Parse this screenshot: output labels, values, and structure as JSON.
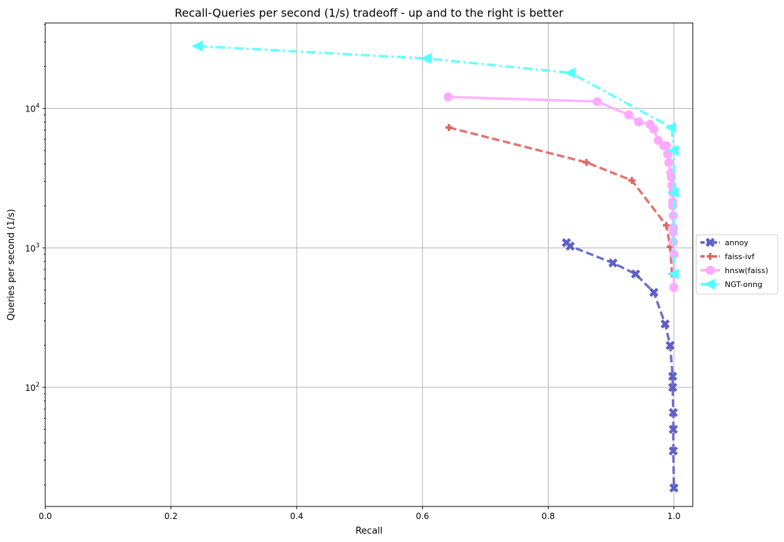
{
  "chart_data": {
    "type": "line",
    "title": "Recall-Queries per second (1/s) tradeoff - up and to the right is better",
    "xlabel": "Recall",
    "ylabel": "Queries per second (1/s)",
    "xscale": "linear",
    "yscale": "log",
    "xlim": [
      0.0,
      1.03
    ],
    "ylim": [
      14,
      41000
    ],
    "xticks": [
      {
        "v": 0.0,
        "label": "0.0"
      },
      {
        "v": 0.2,
        "label": "0.2"
      },
      {
        "v": 0.4,
        "label": "0.4"
      },
      {
        "v": 0.6,
        "label": "0.6"
      },
      {
        "v": 0.8,
        "label": "0.8"
      },
      {
        "v": 1.0,
        "label": "1.0"
      }
    ],
    "yticks": [
      {
        "v": 100,
        "base": "10",
        "exp": "2"
      },
      {
        "v": 1000,
        "base": "10",
        "exp": "3"
      },
      {
        "v": 10000,
        "base": "10",
        "exp": "4"
      }
    ],
    "grid": true,
    "legend_position": "right-outside",
    "series": [
      {
        "name": "annoy",
        "color": "#5f5fc8",
        "dash": "dashed",
        "marker": "x",
        "points": [
          [
            0.829,
            1090
          ],
          [
            0.835,
            1030
          ],
          [
            0.903,
            780
          ],
          [
            0.939,
            650
          ],
          [
            0.968,
            480
          ],
          [
            0.986,
            285
          ],
          [
            0.994,
            200
          ],
          [
            0.998,
            120
          ],
          [
            0.998,
            100
          ],
          [
            0.999,
            66
          ],
          [
            0.999,
            50
          ],
          [
            0.999,
            35
          ],
          [
            1.0,
            19
          ]
        ]
      },
      {
        "name": "faiss-ivf",
        "color": "#e06464",
        "dash": "dashed",
        "marker": "plus",
        "points": [
          [
            0.642,
            7300
          ],
          [
            0.861,
            4100
          ],
          [
            0.933,
            3050
          ],
          [
            0.988,
            1450
          ],
          [
            0.994,
            1020
          ],
          [
            0.997,
            650
          ]
        ]
      },
      {
        "name": "hnsw(faiss)",
        "color": "#ffaaff",
        "dash": "solid",
        "marker": "circle",
        "points": [
          [
            0.641,
            12100
          ],
          [
            0.878,
            11200
          ],
          [
            0.928,
            9000
          ],
          [
            0.944,
            8000
          ],
          [
            0.962,
            7700
          ],
          [
            0.968,
            7100
          ],
          [
            0.975,
            5900
          ],
          [
            0.984,
            5400
          ],
          [
            0.988,
            5400
          ],
          [
            0.99,
            4700
          ],
          [
            0.992,
            4100
          ],
          [
            0.995,
            3450
          ],
          [
            0.996,
            3200
          ],
          [
            0.997,
            2800
          ],
          [
            0.998,
            2500
          ],
          [
            0.998,
            2150
          ],
          [
            0.998,
            2000
          ],
          [
            0.999,
            1700
          ],
          [
            0.999,
            1400
          ],
          [
            0.999,
            1300
          ],
          [
            0.999,
            1100
          ],
          [
            1.0,
            900
          ],
          [
            1.0,
            520
          ]
        ]
      },
      {
        "name": "NGT-onng",
        "color": "#55ffff",
        "dash": "dashdot",
        "marker": "triangle-left",
        "points": [
          [
            0.243,
            28000
          ],
          [
            0.607,
            22800
          ],
          [
            0.836,
            18000
          ],
          [
            0.996,
            7300
          ],
          [
            1.0,
            5000
          ],
          [
            1.0,
            2500
          ],
          [
            1.0,
            650
          ]
        ]
      }
    ]
  }
}
